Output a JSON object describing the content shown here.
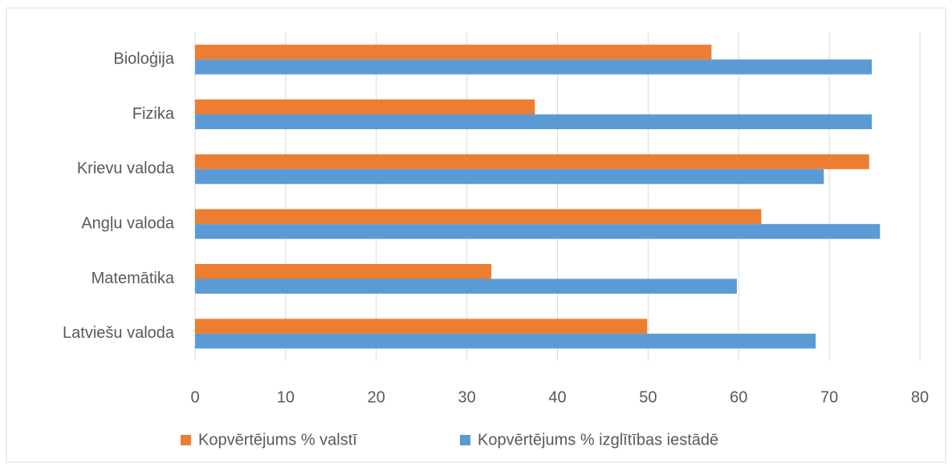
{
  "chart_data": {
    "type": "hbar",
    "categories": [
      "Latviešu valoda",
      "Matemātika",
      "Angļu valoda",
      "Krievu valoda",
      "Fizika",
      "Bioloģija"
    ],
    "series": [
      {
        "name": "Kopvērtējums % valstī",
        "color": "#ed7d31",
        "values": [
          49.9,
          32.7,
          62.5,
          74.4,
          37.5,
          57
        ]
      },
      {
        "name": "Kopvērtējums % izglītības iestādē",
        "color": "#5b9bd5",
        "values": [
          68.5,
          59.8,
          75.6,
          69.4,
          74.7,
          74.7
        ]
      }
    ],
    "xlim": [
      0,
      80
    ],
    "xticks": [
      0,
      10,
      20,
      30,
      40,
      50,
      60,
      70,
      80
    ],
    "grid": true,
    "legend": "bottom"
  }
}
